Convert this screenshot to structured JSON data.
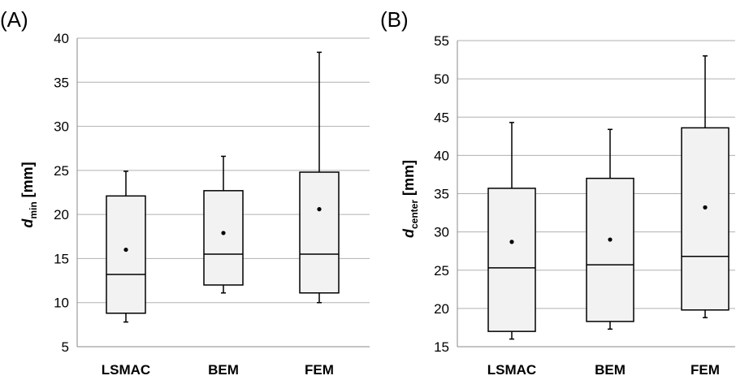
{
  "chart_data": [
    {
      "type": "box",
      "panel_label": "(A)",
      "ylabel_main": "d",
      "ylabel_sub": "min",
      "ylabel_unit": " [mm]",
      "ylim": [
        5,
        40
      ],
      "yticks": [
        5,
        10,
        15,
        20,
        25,
        30,
        35,
        40
      ],
      "grid": true,
      "categories": [
        "LSMAC",
        "BEM",
        "FEM"
      ],
      "boxes": [
        {
          "whisker_low": 7.8,
          "q1": 8.8,
          "median": 13.2,
          "q3": 22.1,
          "whisker_high": 24.9,
          "mean": 16.0
        },
        {
          "whisker_low": 11.1,
          "q1": 12.0,
          "median": 15.5,
          "q3": 22.7,
          "whisker_high": 26.6,
          "mean": 17.9
        },
        {
          "whisker_low": 10.0,
          "q1": 11.1,
          "median": 15.5,
          "q3": 24.8,
          "whisker_high": 38.4,
          "mean": 20.6
        }
      ]
    },
    {
      "type": "box",
      "panel_label": "(B)",
      "ylabel_main": "d",
      "ylabel_sub": "center",
      "ylabel_unit": " [mm]",
      "ylim": [
        15,
        55
      ],
      "yticks": [
        15,
        20,
        25,
        30,
        35,
        40,
        45,
        50,
        55
      ],
      "grid": true,
      "categories": [
        "LSMAC",
        "BEM",
        "FEM"
      ],
      "boxes": [
        {
          "whisker_low": 16.0,
          "q1": 17.0,
          "median": 25.3,
          "q3": 35.7,
          "whisker_high": 44.3,
          "mean": 28.7
        },
        {
          "whisker_low": 17.3,
          "q1": 18.3,
          "median": 25.7,
          "q3": 37.0,
          "whisker_high": 43.4,
          "mean": 29.0
        },
        {
          "whisker_low": 18.8,
          "q1": 19.8,
          "median": 26.8,
          "q3": 43.6,
          "whisker_high": 53.0,
          "mean": 33.2
        }
      ]
    }
  ],
  "colors": {
    "box_fill": "#f2f2f2",
    "stroke": "#000000",
    "grid": "#b0b0b0",
    "axis": "#888888"
  }
}
